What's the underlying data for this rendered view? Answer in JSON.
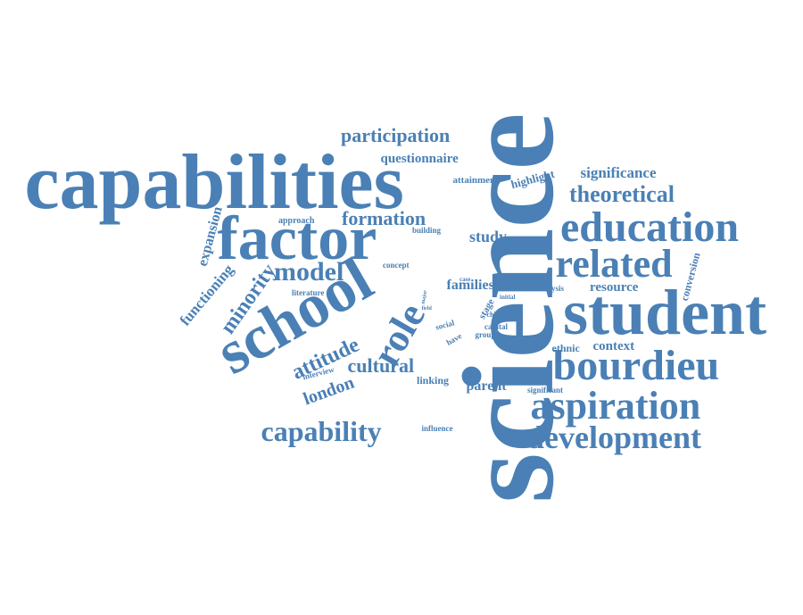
{
  "accent_color": "#4a80b5",
  "words": [
    {
      "id": "science",
      "text": "science"
    },
    {
      "id": "capabilities",
      "text": "capabilities"
    },
    {
      "id": "factor",
      "text": "factor"
    },
    {
      "id": "student",
      "text": "student"
    },
    {
      "id": "school",
      "text": "school"
    },
    {
      "id": "education",
      "text": "education"
    },
    {
      "id": "bourdieu",
      "text": "bourdieu"
    },
    {
      "id": "related",
      "text": "related"
    },
    {
      "id": "aspiration",
      "text": "aspiration"
    },
    {
      "id": "development",
      "text": "development"
    },
    {
      "id": "capability",
      "text": "capability"
    },
    {
      "id": "model",
      "text": "model"
    },
    {
      "id": "participation",
      "text": "participation"
    },
    {
      "id": "theoretical",
      "text": "theoretical"
    },
    {
      "id": "formation",
      "text": "formation"
    },
    {
      "id": "questionnaire",
      "text": "questionnaire"
    },
    {
      "id": "significance",
      "text": "significance"
    },
    {
      "id": "highlight",
      "text": "highlight"
    },
    {
      "id": "attainment",
      "text": "attainment"
    },
    {
      "id": "study",
      "text": "study"
    },
    {
      "id": "role",
      "text": "role"
    },
    {
      "id": "minority",
      "text": "minority"
    },
    {
      "id": "attitude",
      "text": "attitude"
    },
    {
      "id": "cultural",
      "text": "cultural"
    },
    {
      "id": "london",
      "text": "london"
    },
    {
      "id": "expansion",
      "text": "expansion"
    },
    {
      "id": "functioning",
      "text": "functioning"
    },
    {
      "id": "families",
      "text": "families"
    },
    {
      "id": "resource",
      "text": "resource"
    },
    {
      "id": "context",
      "text": "context"
    },
    {
      "id": "ethnic",
      "text": "ethnic"
    },
    {
      "id": "parent",
      "text": "parent"
    },
    {
      "id": "linking",
      "text": "linking"
    },
    {
      "id": "conversion",
      "text": "conversion"
    },
    {
      "id": "approach",
      "text": "approach"
    },
    {
      "id": "building",
      "text": "building"
    },
    {
      "id": "concept",
      "text": "concept"
    },
    {
      "id": "literature",
      "text": "literature"
    },
    {
      "id": "interview",
      "text": "interview"
    },
    {
      "id": "influence",
      "text": "influence"
    },
    {
      "id": "significant",
      "text": "significant"
    },
    {
      "id": "analysis",
      "text": "analysis"
    },
    {
      "id": "case",
      "text": "case"
    },
    {
      "id": "initial",
      "text": "initial"
    },
    {
      "id": "child",
      "text": "child"
    },
    {
      "id": "capital",
      "text": "capital"
    },
    {
      "id": "group",
      "text": "group"
    },
    {
      "id": "stage",
      "text": "stage"
    },
    {
      "id": "social",
      "text": "social"
    },
    {
      "id": "have",
      "text": "have"
    },
    {
      "id": "major",
      "text": "major"
    },
    {
      "id": "field",
      "text": "field"
    }
  ]
}
